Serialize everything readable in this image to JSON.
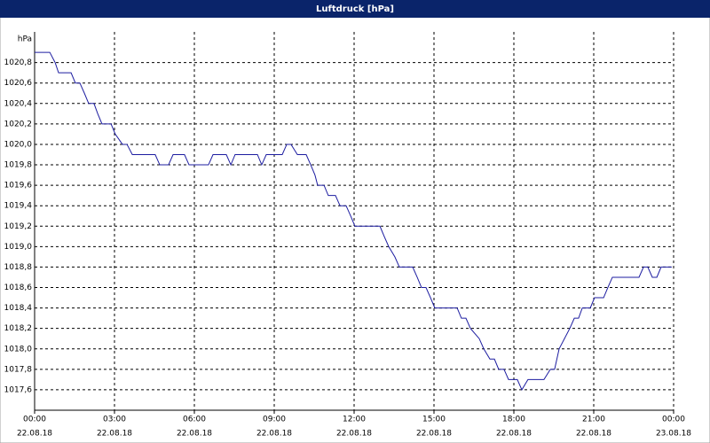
{
  "chart_data": {
    "type": "line",
    "title": "Luftdruck [hPa]",
    "y_unit": "hPa",
    "x": [
      0,
      0.57,
      0.77,
      0.9,
      1.37,
      1.53,
      1.7,
      1.87,
      2.03,
      2.23,
      2.37,
      2.53,
      2.87,
      3.03,
      3.3,
      3.47,
      3.67,
      4.53,
      4.7,
      5.03,
      5.2,
      5.63,
      5.8,
      6.53,
      6.7,
      7.2,
      7.37,
      7.53,
      8.37,
      8.53,
      8.7,
      9.3,
      9.47,
      9.63,
      9.87,
      10.2,
      10.37,
      10.53,
      10.63,
      10.87,
      11.03,
      11.3,
      11.47,
      11.7,
      11.87,
      12.03,
      12.97,
      13.13,
      13.3,
      13.53,
      13.7,
      14.2,
      14.37,
      14.53,
      14.7,
      14.87,
      15.03,
      15.87,
      16.03,
      16.2,
      16.37,
      16.7,
      16.87,
      17.1,
      17.27,
      17.43,
      17.63,
      17.8,
      18.13,
      18.3,
      18.53,
      19.13,
      19.37,
      19.53,
      19.7,
      19.9,
      20.1,
      20.27,
      20.43,
      20.57,
      20.87,
      21.03,
      21.37,
      21.53,
      21.7,
      22.7,
      22.87,
      23.03,
      23.2,
      23.37,
      23.53,
      23.93
    ],
    "series": [
      {
        "name": "Luftdruck",
        "color": "#1c1ca0",
        "values": [
          1020.9,
          1020.9,
          1020.8,
          1020.7,
          1020.7,
          1020.6,
          1020.6,
          1020.5,
          1020.4,
          1020.4,
          1020.3,
          1020.2,
          1020.2,
          1020.1,
          1020.0,
          1020.0,
          1019.9,
          1019.9,
          1019.8,
          1019.8,
          1019.9,
          1019.9,
          1019.8,
          1019.8,
          1019.9,
          1019.9,
          1019.8,
          1019.9,
          1019.9,
          1019.8,
          1019.9,
          1019.9,
          1020.0,
          1020.0,
          1019.9,
          1019.9,
          1019.8,
          1019.7,
          1019.6,
          1019.6,
          1019.5,
          1019.5,
          1019.4,
          1019.4,
          1019.3,
          1019.2,
          1019.2,
          1019.1,
          1019.0,
          1018.9,
          1018.8,
          1018.8,
          1018.7,
          1018.6,
          1018.6,
          1018.5,
          1018.4,
          1018.4,
          1018.3,
          1018.3,
          1018.2,
          1018.1,
          1018.0,
          1017.9,
          1017.9,
          1017.8,
          1017.8,
          1017.7,
          1017.7,
          1017.6,
          1017.7,
          1017.7,
          1017.8,
          1017.8,
          1018.0,
          1018.1,
          1018.2,
          1018.3,
          1018.3,
          1018.4,
          1018.4,
          1018.5,
          1018.5,
          1018.6,
          1018.7,
          1018.7,
          1018.8,
          1018.8,
          1018.7,
          1018.7,
          1018.8,
          1018.8
        ]
      }
    ],
    "xlim": [
      0,
      24
    ],
    "xticks": [
      {
        "value": 0,
        "label": "00:00"
      },
      {
        "value": 3,
        "label": "03:00"
      },
      {
        "value": 6,
        "label": "06:00"
      },
      {
        "value": 9,
        "label": "09:00"
      },
      {
        "value": 12,
        "label": "12:00"
      },
      {
        "value": 15,
        "label": "15:00"
      },
      {
        "value": 18,
        "label": "18:00"
      },
      {
        "value": 21,
        "label": "21:00"
      },
      {
        "value": 24,
        "label": "00:00"
      }
    ],
    "xtick_dates": [
      "22.08.18",
      "22.08.18",
      "22.08.18",
      "22.08.18",
      "22.08.18",
      "22.08.18",
      "22.08.18",
      "22.08.18",
      "23.08.18"
    ],
    "ylim": [
      1017.4,
      1021.1
    ],
    "yticks": [
      {
        "value": 1017.6,
        "label": "1017,6"
      },
      {
        "value": 1017.8,
        "label": "1017,8"
      },
      {
        "value": 1018.0,
        "label": "1018,0"
      },
      {
        "value": 1018.2,
        "label": "1018,2"
      },
      {
        "value": 1018.4,
        "label": "1018,4"
      },
      {
        "value": 1018.6,
        "label": "1018,6"
      },
      {
        "value": 1018.8,
        "label": "1018,8"
      },
      {
        "value": 1019.0,
        "label": "1019,0"
      },
      {
        "value": 1019.2,
        "label": "1019,2"
      },
      {
        "value": 1019.4,
        "label": "1019,4"
      },
      {
        "value": 1019.6,
        "label": "1019,6"
      },
      {
        "value": 1019.8,
        "label": "1019,8"
      },
      {
        "value": 1020.0,
        "label": "1020,0"
      },
      {
        "value": 1020.2,
        "label": "1020,2"
      },
      {
        "value": 1020.4,
        "label": "1020,4"
      },
      {
        "value": 1020.6,
        "label": "1020,6"
      },
      {
        "value": 1020.8,
        "label": "1020,8"
      }
    ],
    "grid": true
  }
}
